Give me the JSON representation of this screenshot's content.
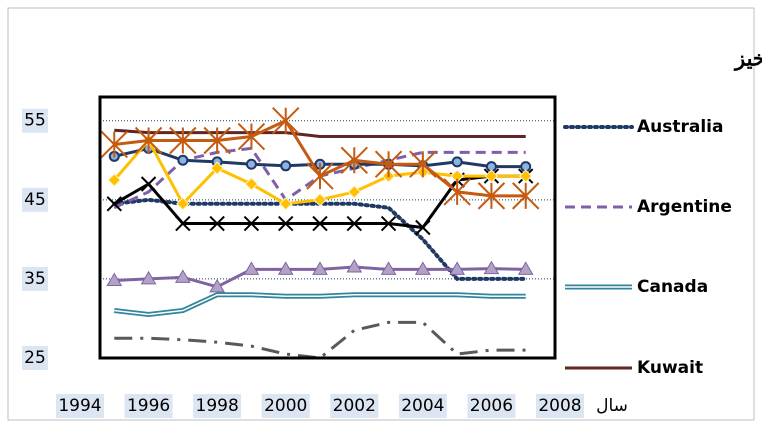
{
  "chart_data": {
    "type": "line",
    "title": "شاخص جینی در کشورهای توسعه یافته نفت خیز",
    "x_label": "سال",
    "x": [
      1995,
      1996,
      1997,
      1998,
      1999,
      2000,
      2001,
      2002,
      2003,
      2004,
      2005,
      2006,
      2007
    ],
    "xlim": [
      1994,
      2008
    ],
    "xticks": [
      1994,
      1996,
      1998,
      2000,
      2002,
      2004,
      2006,
      2008
    ],
    "ylim": [
      25,
      58
    ],
    "yticks": [
      25,
      35,
      45,
      55
    ],
    "grid": true,
    "legend": "right",
    "series": [
      {
        "name": "Australia",
        "color": "#1f3864",
        "line_style": "dot",
        "values": [
          44.5,
          45,
          44.5,
          44.5,
          44.5,
          44.5,
          44.5,
          44.5,
          44,
          40,
          35,
          35,
          35
        ]
      },
      {
        "name": "Argentine",
        "color": "#7f5fa8",
        "line_style": "dash",
        "values": [
          44,
          46,
          50,
          51,
          51.5,
          45,
          48,
          49,
          50,
          51,
          51,
          51,
          51
        ]
      },
      {
        "name": "Canada",
        "color": "#31859c",
        "line_style": "double",
        "values": [
          31,
          30.5,
          31,
          33,
          33,
          32.8,
          32.8,
          33,
          33,
          33,
          33,
          32.8,
          32.8
        ]
      },
      {
        "name": "Kuwait",
        "color": "#632523",
        "line_style": "solid",
        "values": [
          53.8,
          53.5,
          53.5,
          53.5,
          53.5,
          53.5,
          53,
          53,
          53,
          53,
          53,
          53,
          53
        ]
      },
      {
        "color": "#1f3864",
        "line_style": "solid",
        "marker": "circle",
        "values": [
          50.5,
          51.5,
          50,
          49.8,
          49.5,
          49.3,
          49.5,
          49.5,
          49.5,
          49.3,
          49.8,
          49.2,
          49.2
        ]
      },
      {
        "color": "#000000",
        "line_style": "solid",
        "marker": "x",
        "values": [
          44.5,
          47,
          42,
          42,
          42,
          42,
          42,
          42,
          42,
          41.5,
          47.5,
          48,
          48
        ]
      },
      {
        "color": "#ffc000",
        "line_style": "solid",
        "marker": "diamond",
        "values": [
          47.5,
          52.5,
          44.5,
          49,
          47,
          44.5,
          45,
          46,
          48,
          48.5,
          48,
          48,
          48
        ]
      },
      {
        "color": "#c55a11",
        "line_style": "solid",
        "marker": "asterisk",
        "values": [
          52,
          52.5,
          52.5,
          52.5,
          53,
          55,
          48,
          50,
          49.5,
          49.5,
          46,
          45.5,
          45.5
        ]
      },
      {
        "color": "#8064a2",
        "line_style": "solid",
        "marker": "triangle",
        "values": [
          34.8,
          35,
          35.2,
          34,
          36.2,
          36.2,
          36.2,
          36.5,
          36.2,
          36.2,
          36.2,
          36.3,
          36.2
        ]
      },
      {
        "color": "#595959",
        "line_style": "dashdot",
        "values": [
          27.5,
          27.5,
          27.3,
          27,
          26.5,
          25.5,
          25,
          28.5,
          29.5,
          29.5,
          25.5,
          26,
          26
        ]
      }
    ]
  }
}
